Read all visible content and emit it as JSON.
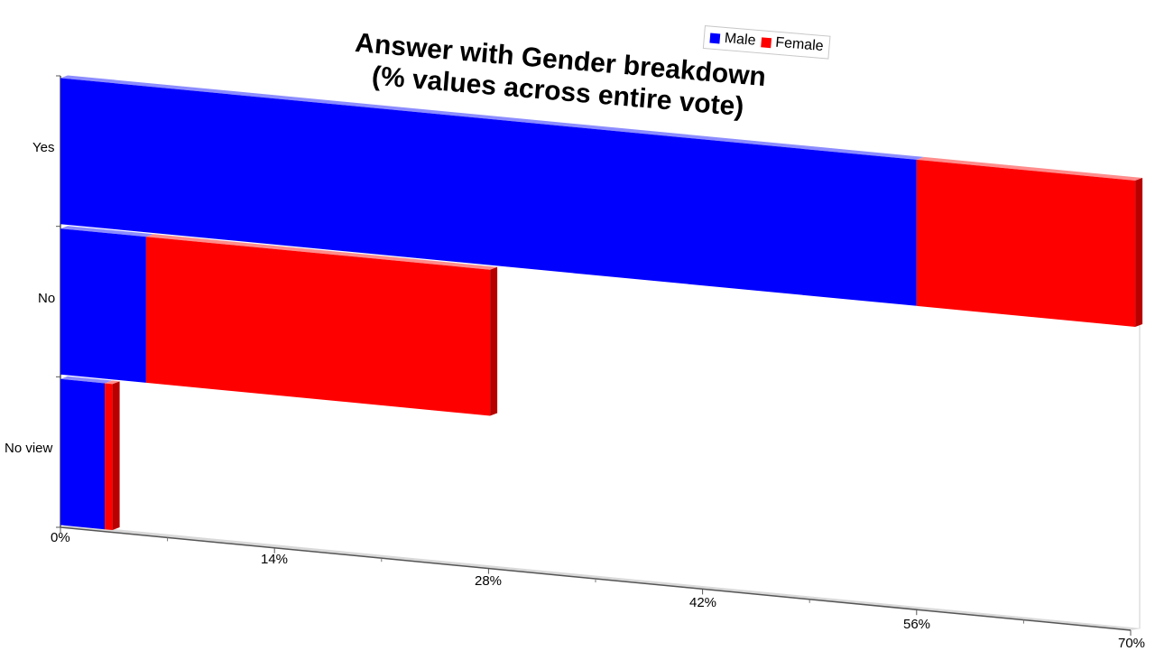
{
  "chart_data": {
    "type": "bar",
    "orientation": "horizontal",
    "stacked": true,
    "title": "Answer with Gender breakdown\n(% values across entire vote)",
    "title_lines": [
      "Answer with Gender breakdown",
      "(% values across entire vote)"
    ],
    "categories": [
      "Yes",
      "No",
      "No view"
    ],
    "series": [
      {
        "name": "Male",
        "color": "#0000ff",
        "values": [
          56.0,
          5.6,
          2.9
        ]
      },
      {
        "name": "Female",
        "color": "#ff0000",
        "values": [
          14.3,
          22.5,
          0.5
        ]
      }
    ],
    "xlim": [
      0,
      70
    ],
    "x_ticks": [
      0,
      14,
      28,
      42,
      56,
      70
    ],
    "x_tick_labels": [
      "0%",
      "14%",
      "28%",
      "42%",
      "56%",
      "70%"
    ],
    "xlabel": "",
    "ylabel": "",
    "grid": false,
    "legend_position": "top-right",
    "style": "3d-perspective"
  }
}
